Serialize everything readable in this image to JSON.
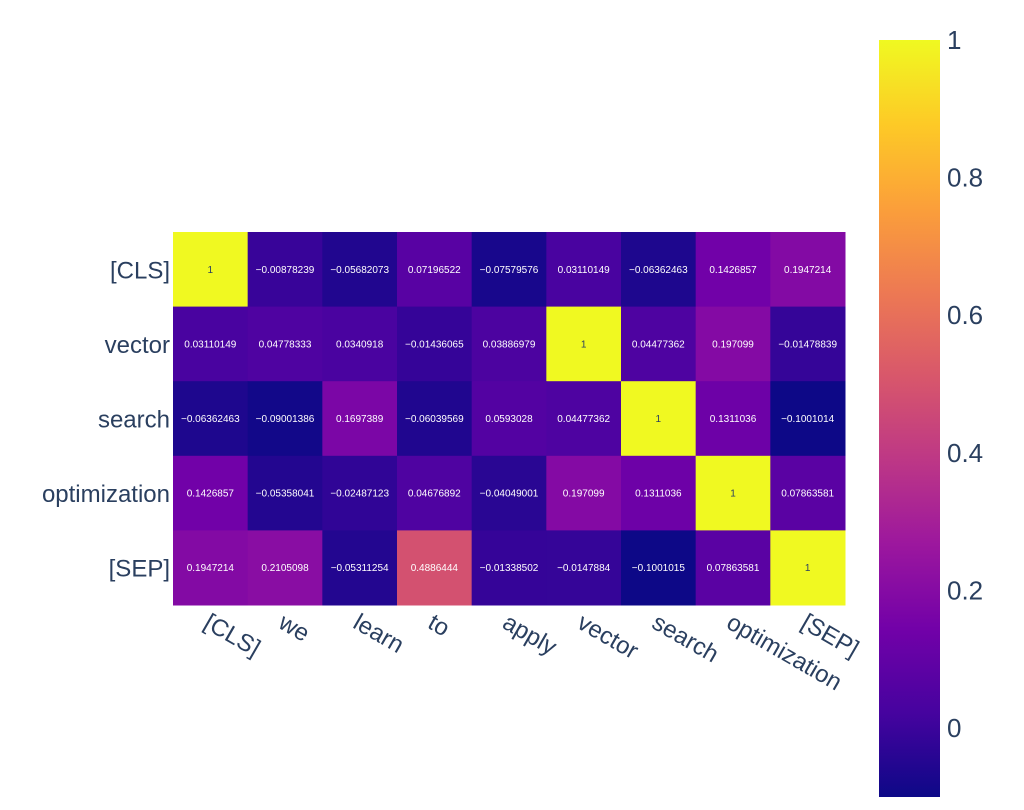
{
  "chart_data": {
    "type": "heatmap",
    "x": [
      "[CLS]",
      "we",
      "learn",
      "to",
      "apply",
      "vector",
      "search",
      "optimization",
      "[SEP]"
    ],
    "y": [
      "[CLS]",
      "vector",
      "search",
      "optimization",
      "[SEP]"
    ],
    "z": [
      [
        1,
        -0.00878239,
        -0.05682073,
        0.07196522,
        -0.07579576,
        0.03110149,
        -0.06362463,
        0.1426857,
        0.1947214
      ],
      [
        0.03110149,
        0.04778333,
        0.0340918,
        -0.01436065,
        0.03886979,
        1,
        0.04477362,
        0.197099,
        -0.01478839
      ],
      [
        -0.06362463,
        -0.09001386,
        0.1697389,
        -0.06039569,
        0.0593028,
        0.04477362,
        1,
        0.1311036,
        -0.1001014
      ],
      [
        0.1426857,
        -0.05358041,
        -0.02487123,
        0.04676892,
        -0.04049001,
        0.197099,
        0.1311036,
        1,
        0.07863581
      ],
      [
        0.1947214,
        0.2105098,
        -0.05311254,
        0.4886444,
        -0.01338502,
        -0.0147884,
        -0.1001015,
        0.07863581,
        1
      ]
    ],
    "text": [
      [
        "1",
        "−0.00878239",
        "−0.05682073",
        "0.07196522",
        "−0.07579576",
        "0.03110149",
        "−0.06362463",
        "0.1426857",
        "0.1947214"
      ],
      [
        "0.03110149",
        "0.04778333",
        "0.0340918",
        "−0.01436065",
        "0.03886979",
        "1",
        "0.04477362",
        "0.197099",
        "−0.01478839"
      ],
      [
        "−0.06362463",
        "−0.09001386",
        "0.1697389",
        "−0.06039569",
        "0.0593028",
        "0.04477362",
        "1",
        "0.1311036",
        "−0.1001014"
      ],
      [
        "0.1426857",
        "−0.05358041",
        "−0.02487123",
        "0.04676892",
        "−0.04049001",
        "0.197099",
        "0.1311036",
        "1",
        "0.07863581"
      ],
      [
        "0.1947214",
        "0.2105098",
        "−0.05311254",
        "0.4886444",
        "−0.01338502",
        "−0.0147884",
        "−0.1001015",
        "0.07863581",
        "1"
      ]
    ],
    "zmin": -0.1001015,
    "zmax": 1,
    "colorscale": [
      "#0d0887",
      "#46039f",
      "#7201a8",
      "#9c179e",
      "#bd3786",
      "#d8576b",
      "#ed7953",
      "#fb9f3a",
      "#fdca26",
      "#f0f921"
    ],
    "colorbar_ticks": [
      0,
      0.2,
      0.4,
      0.6,
      0.8,
      1
    ],
    "colorbar_tick_labels": [
      "0",
      "0.2",
      "0.4",
      "0.6",
      "0.8",
      "1"
    ],
    "title": "",
    "xlabel": "",
    "ylabel": ""
  }
}
